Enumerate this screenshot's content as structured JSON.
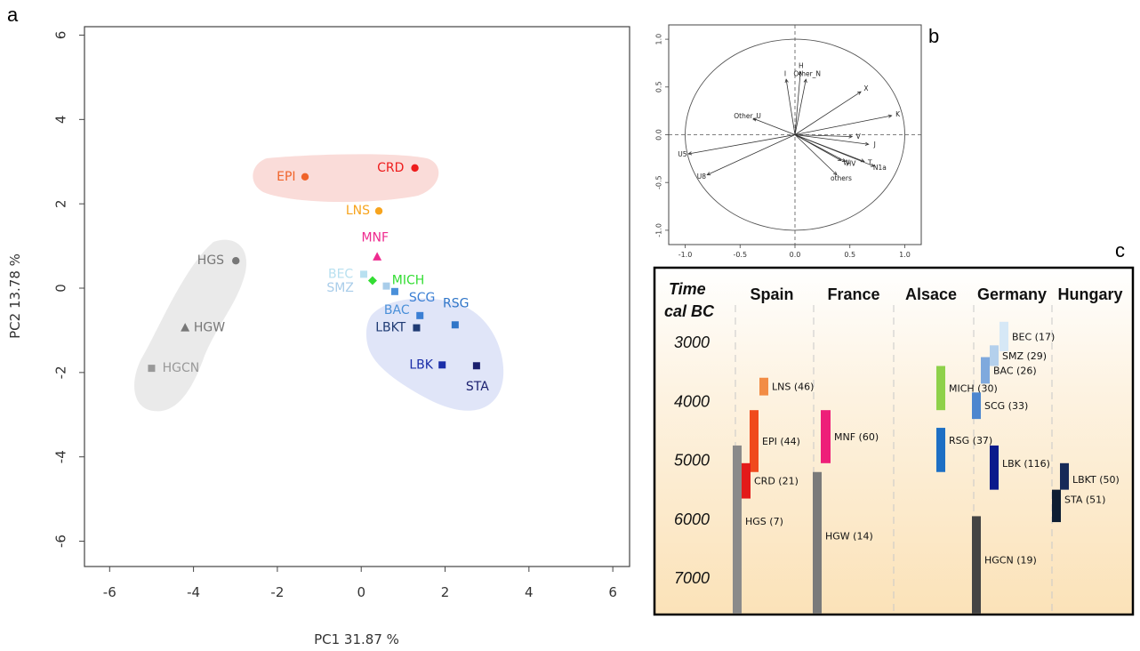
{
  "panels": {
    "a": "a",
    "b": "b",
    "c": "c"
  },
  "chart_data": [
    {
      "type": "scatter",
      "xlabel": "PC1 31.87 %",
      "ylabel": "PC2 13.78 %",
      "xlim": [
        -6.6,
        6.4
      ],
      "ylim": [
        -6.6,
        6.2
      ],
      "xticks": [
        -6,
        -4,
        -2,
        0,
        2,
        4,
        6
      ],
      "yticks": [
        -6,
        -4,
        -2,
        0,
        2,
        4,
        6
      ],
      "xtick_labels": [
        "-6",
        "-4",
        "-2",
        "0",
        "2",
        "4",
        "6"
      ],
      "ytick_labels": [
        "-6",
        "-4",
        "-2",
        "0",
        "2",
        "4",
        "6"
      ],
      "points": [
        {
          "label": "EPI",
          "x": -1.34,
          "y": 2.64,
          "marker": "circle",
          "color": "#f0642a",
          "label_dx": -0.45,
          "label_dy": 0
        },
        {
          "label": "CRD",
          "x": 1.28,
          "y": 2.85,
          "marker": "circle",
          "color": "#ee1c1c",
          "label_dx": -0.58,
          "label_dy": 0
        },
        {
          "label": "LNS",
          "x": 0.42,
          "y": 1.83,
          "marker": "circle",
          "color": "#f7a41e",
          "label_dx": -0.5,
          "label_dy": 0
        },
        {
          "label": "MNF",
          "x": 0.38,
          "y": 0.74,
          "marker": "triangle",
          "color": "#ee2b8f",
          "label_dx": -0.05,
          "label_dy": 0.45
        },
        {
          "label": "HGS",
          "x": -2.99,
          "y": 0.65,
          "marker": "circle",
          "color": "#777777",
          "label_dx": -0.6,
          "label_dy": 0
        },
        {
          "label": "BEC",
          "x": 0.06,
          "y": 0.33,
          "marker": "square",
          "color": "#b8e0f0",
          "label_dx": -0.55,
          "label_dy": 0
        },
        {
          "label": "SMZ",
          "x": 0.6,
          "y": 0.05,
          "marker": "square",
          "color": "#a9cdea",
          "label_dx": -1.1,
          "label_dy": -0.05
        },
        {
          "label": "MICH",
          "x": 0.27,
          "y": 0.18,
          "marker": "diamond",
          "color": "#33dd33",
          "label_dx": 0.85,
          "label_dy": 0
        },
        {
          "label": "BAC",
          "x": 0.8,
          "y": -0.08,
          "marker": "square",
          "color": "#4a90d9",
          "label_dx": 0.05,
          "label_dy": -0.45
        },
        {
          "label": "SCG",
          "x": 1.4,
          "y": -0.65,
          "marker": "square",
          "color": "#3b7fd4",
          "label_dx": 0.05,
          "label_dy": 0.42
        },
        {
          "label": "RSG",
          "x": 2.24,
          "y": -0.87,
          "marker": "square",
          "color": "#2f75c8",
          "label_dx": 0.02,
          "label_dy": 0.5
        },
        {
          "label": "LBKT",
          "x": 1.32,
          "y": -0.94,
          "marker": "square",
          "color": "#1f3b74",
          "label_dx": -0.62,
          "label_dy": 0
        },
        {
          "label": "HGW",
          "x": -4.2,
          "y": -0.94,
          "marker": "triangle",
          "color": "#777777",
          "label_dx": 0.58,
          "label_dy": 0
        },
        {
          "label": "LBK",
          "x": 1.93,
          "y": -1.82,
          "marker": "square",
          "color": "#1a2da8",
          "label_dx": -0.5,
          "label_dy": 0
        },
        {
          "label": "STA",
          "x": 2.75,
          "y": -1.84,
          "marker": "square",
          "color": "#1a1f6e",
          "label_dx": 0.02,
          "label_dy": -0.5
        },
        {
          "label": "HGCN",
          "x": -5.0,
          "y": -1.9,
          "marker": "square",
          "color": "#999999",
          "label_dx": 0.7,
          "label_dy": 0
        }
      ],
      "label_colors": {
        "EPI": "#f0642a",
        "CRD": "#ee1c1c",
        "LNS": "#f7a41e",
        "MNF": "#ee2b8f",
        "HGS": "#777777",
        "BEC": "#b8e0f0",
        "SMZ": "#a9cdea",
        "MICH": "#33dd33",
        "BAC": "#4a90d9",
        "SCG": "#3b7fd4",
        "RSG": "#2f75c8",
        "LBKT": "#1f3b74",
        "HGW": "#777777",
        "LBK": "#1a2da8",
        "STA": "#1a1f6e",
        "HGCN": "#999999"
      }
    },
    {
      "type": "scatter",
      "xlim": [
        -1.15,
        1.15
      ],
      "ylim": [
        -1.15,
        1.15
      ],
      "xticks": [
        -1.0,
        -0.5,
        0.0,
        0.5,
        1.0
      ],
      "yticks": [
        -1.0,
        -0.5,
        0.0,
        0.5,
        1.0
      ],
      "xtick_labels": [
        "-1.0",
        "-0.5",
        "0.0",
        "0.5",
        "1.0"
      ],
      "ytick_labels": [
        "-1.0",
        "-0.5",
        "0.0",
        "0.5",
        "1.0"
      ],
      "vectors": [
        {
          "label": "I",
          "x": -0.08,
          "y": 0.58
        },
        {
          "label": "H",
          "x": 0.05,
          "y": 0.66
        },
        {
          "label": "Other_N",
          "x": 0.1,
          "y": 0.58
        },
        {
          "label": "X",
          "x": 0.6,
          "y": 0.45
        },
        {
          "label": "K",
          "x": 0.88,
          "y": 0.2
        },
        {
          "label": "Other_U",
          "x": -0.38,
          "y": 0.17
        },
        {
          "label": "V",
          "x": 0.52,
          "y": -0.02
        },
        {
          "label": "J",
          "x": 0.67,
          "y": -0.1
        },
        {
          "label": "U5",
          "x": -0.97,
          "y": -0.2
        },
        {
          "label": "U8",
          "x": -0.8,
          "y": -0.42
        },
        {
          "label": "W",
          "x": 0.42,
          "y": -0.27
        },
        {
          "label": "HV",
          "x": 0.46,
          "y": -0.28
        },
        {
          "label": "T",
          "x": 0.63,
          "y": -0.28
        },
        {
          "label": "N1a",
          "x": 0.72,
          "y": -0.33
        },
        {
          "label": "others",
          "x": 0.38,
          "y": -0.42
        }
      ]
    },
    {
      "type": "bar",
      "time_title": "Time",
      "time_title2": "cal BC",
      "regions": [
        "Spain",
        "France",
        "Alsace",
        "Germany",
        "Hungary"
      ],
      "year_ticks": [
        "3000",
        "4000",
        "5000",
        "6000",
        "7000"
      ],
      "bars": [
        {
          "label": "LNS (46)",
          "region": "Spain",
          "start": 3600,
          "end": 3900,
          "color": "#f28c45"
        },
        {
          "label": "EPI (44)",
          "region": "Spain",
          "start": 4150,
          "end": 5200,
          "color": "#f04a1c"
        },
        {
          "label": "CRD (21)",
          "region": "Spain",
          "start": 5050,
          "end": 5650,
          "color": "#e31a1a"
        },
        {
          "label": "HGS (7)",
          "region": "Spain",
          "start": 4750,
          "end": 7600,
          "color": "#8a8a8a"
        },
        {
          "label": "MNF (60)",
          "region": "France",
          "start": 4150,
          "end": 5050,
          "color": "#ee1f79"
        },
        {
          "label": "HGW (14)",
          "region": "France",
          "start": 5200,
          "end": 7600,
          "color": "#7a7a7a"
        },
        {
          "label": "MICH (30)",
          "region": "Alsace",
          "start": 3400,
          "end": 4150,
          "color": "#8ed14a"
        },
        {
          "label": "RSG (37)",
          "region": "Alsace",
          "start": 4450,
          "end": 5200,
          "color": "#1d6fc4"
        },
        {
          "label": "BEC (17)",
          "region": "Germany",
          "start": 2650,
          "end": 3150,
          "color": "#d6e8f6"
        },
        {
          "label": "SMZ (29)",
          "region": "Germany",
          "start": 3050,
          "end": 3400,
          "color": "#b4d0ec"
        },
        {
          "label": "BAC (26)",
          "region": "Germany",
          "start": 3250,
          "end": 3700,
          "color": "#7fa9dd"
        },
        {
          "label": "SCG (33)",
          "region": "Germany",
          "start": 3850,
          "end": 4300,
          "color": "#4c86cf"
        },
        {
          "label": "LBK (116)",
          "region": "Germany",
          "start": 4750,
          "end": 5500,
          "color": "#0a1b8c"
        },
        {
          "label": "HGCN (19)",
          "region": "Germany",
          "start": 5950,
          "end": 7600,
          "color": "#444444"
        },
        {
          "label": "LBKT (50)",
          "region": "Hungary",
          "start": 5050,
          "end": 5500,
          "color": "#162a58"
        },
        {
          "label": "STA (51)",
          "region": "Hungary",
          "start": 5500,
          "end": 6050,
          "color": "#0e1e33"
        }
      ]
    }
  ]
}
